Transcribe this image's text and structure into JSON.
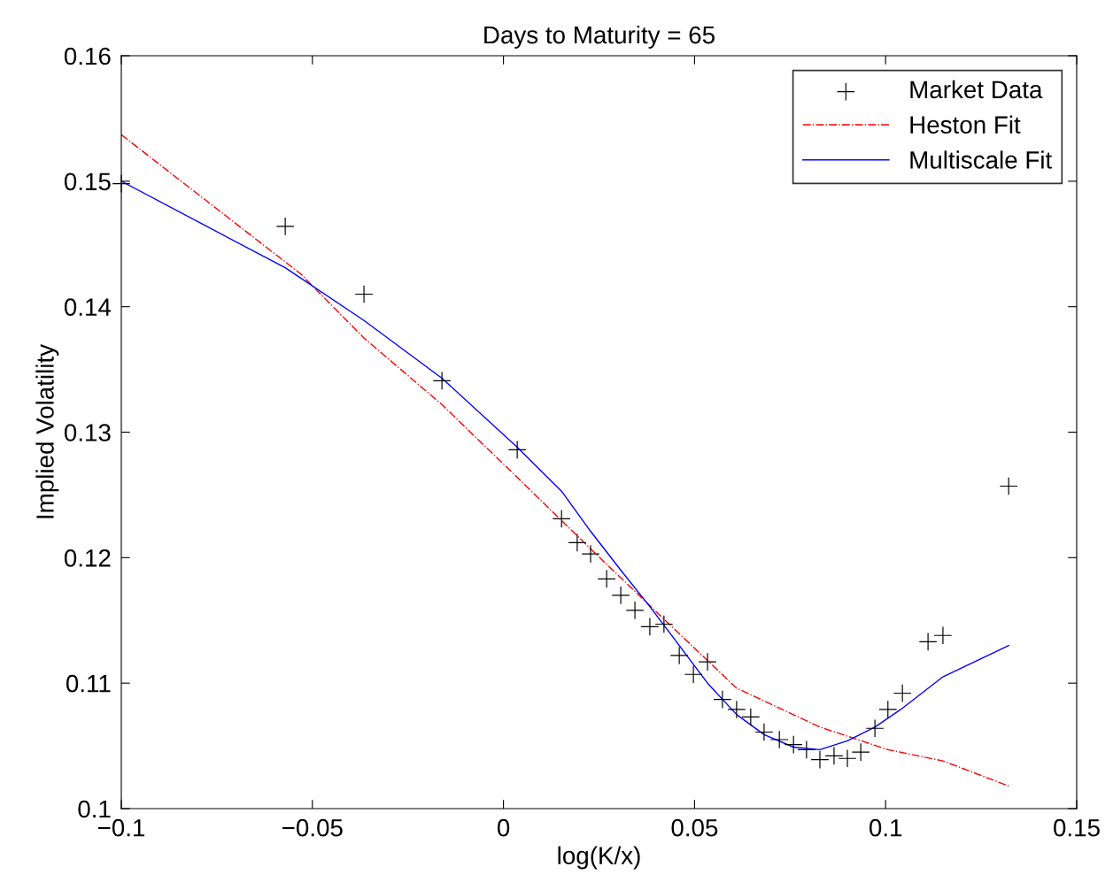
{
  "chart_data": {
    "type": "line",
    "title": "Days to Maturity = 65",
    "xlabel": "log(K/x)",
    "ylabel": "Implied Volatility",
    "xlim": [
      -0.1,
      0.15
    ],
    "xticks": [
      {
        "value": -0.1,
        "label": "−0.1"
      },
      {
        "value": -0.05,
        "label": "−0.05"
      },
      0,
      0.05,
      0.1,
      0.15
    ],
    "ylim": [
      0.1,
      0.16
    ],
    "yticks": [
      0.1,
      0.11,
      0.12,
      0.13,
      0.14,
      0.15,
      0.16
    ],
    "grid": false,
    "legend": "top right",
    "series": [
      {
        "name": "Market Data",
        "type": "scatter",
        "marker": "cross",
        "color": "#000000",
        "x": [
          -0.1,
          -0.0571,
          -0.0365,
          -0.0161,
          0.0036,
          0.0152,
          0.0193,
          0.0228,
          0.027,
          0.0307,
          0.0344,
          0.0383,
          0.042,
          0.046,
          0.0497,
          0.0534,
          0.0573,
          0.061,
          0.0647,
          0.0682,
          0.0722,
          0.0759,
          0.0793,
          0.0828,
          0.0865,
          0.09,
          0.0935,
          0.0972,
          0.1006,
          0.1044,
          0.1111,
          0.115,
          0.1322
        ],
        "values": [
          0.1498,
          0.1464,
          0.141,
          0.1341,
          0.1286,
          0.1231,
          0.1212,
          0.1203,
          0.1183,
          0.117,
          0.1158,
          0.1145,
          0.1147,
          0.1122,
          0.1107,
          0.1117,
          0.1087,
          0.1079,
          0.1073,
          0.1061,
          0.1055,
          0.1051,
          0.1047,
          0.1039,
          0.1042,
          0.104,
          0.1045,
          0.1064,
          0.1079,
          0.1092,
          0.1133,
          0.1138,
          0.1257
        ]
      },
      {
        "name": "Heston Fit",
        "line_style": "dashdot",
        "color": "#ff0000",
        "x": [
          -0.1,
          -0.053,
          -0.0365,
          -0.0161,
          0.0036,
          0.0228,
          0.042,
          0.061,
          0.0828,
          0.1006,
          0.115,
          0.1322
        ],
        "values": [
          0.1537,
          0.1426,
          0.1375,
          0.1322,
          0.1264,
          0.1207,
          0.1151,
          0.1096,
          0.1065,
          0.1047,
          0.1038,
          0.1018
        ]
      },
      {
        "name": "Multiscale Fit",
        "line_style": "solid",
        "color": "#0000ff",
        "x": [
          -0.1,
          -0.0571,
          -0.0365,
          -0.0161,
          0.0036,
          0.0152,
          0.0228,
          0.0307,
          0.0383,
          0.046,
          0.0534,
          0.061,
          0.0682,
          0.0759,
          0.0828,
          0.09,
          0.0972,
          0.1044,
          0.115,
          0.1322
        ],
        "values": [
          0.15,
          0.1431,
          0.1389,
          0.1343,
          0.1288,
          0.1253,
          0.1221,
          0.119,
          0.1161,
          0.113,
          0.11,
          0.1075,
          0.1059,
          0.1049,
          0.1047,
          0.1054,
          0.1065,
          0.108,
          0.1105,
          0.113
        ]
      }
    ]
  }
}
